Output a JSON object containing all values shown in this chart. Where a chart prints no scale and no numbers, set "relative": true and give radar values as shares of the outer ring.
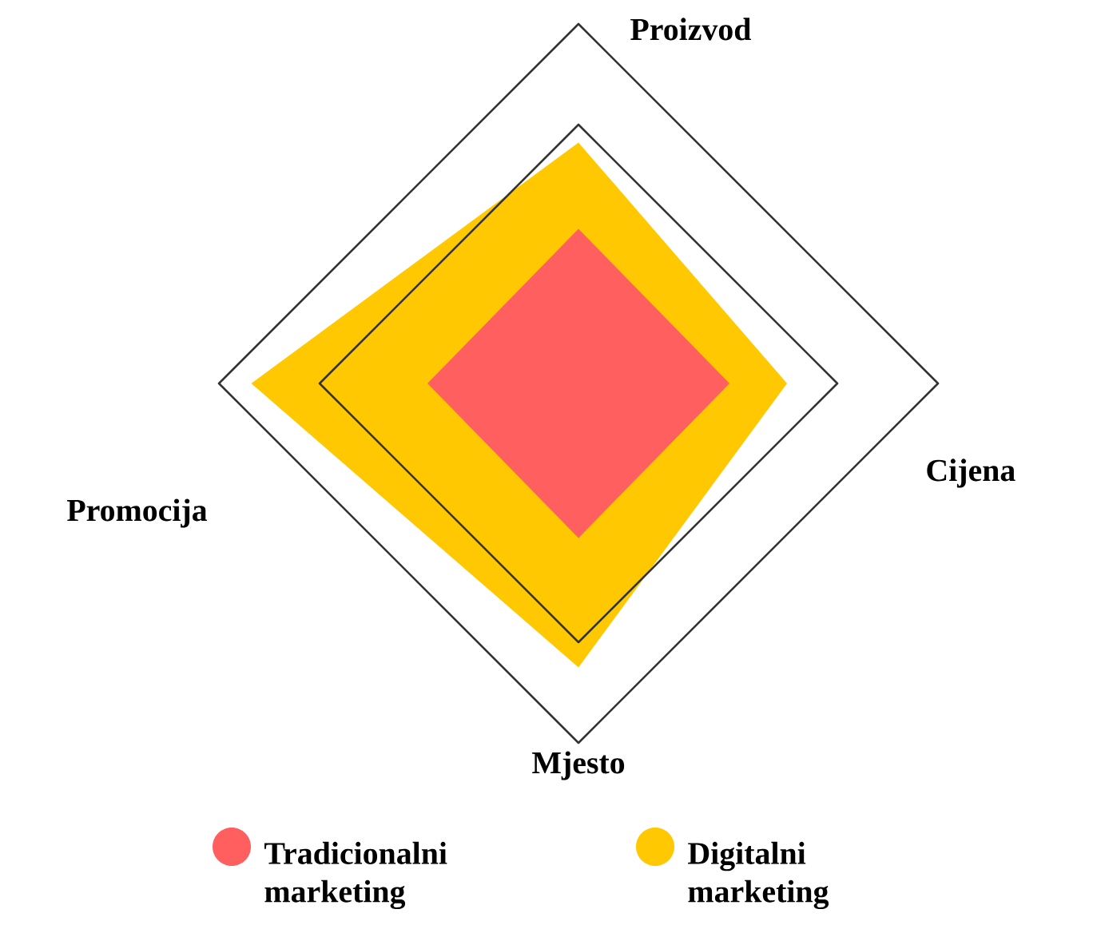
{
  "chart_data": {
    "type": "radar",
    "relative": true,
    "grid": true,
    "legend": "bottom",
    "categories": [
      "Proizvod",
      "Cijena",
      "Mjesto",
      "Promocija"
    ],
    "series": [
      {
        "name": "Digitalni marketing",
        "color": "#ffc800",
        "values": [
          0.67,
          0.58,
          0.79,
          0.91
        ]
      },
      {
        "name": "Tradicionalni marketing",
        "color": "#ff5f5f",
        "values": [
          0.43,
          0.42,
          0.43,
          0.42
        ]
      }
    ]
  }
}
